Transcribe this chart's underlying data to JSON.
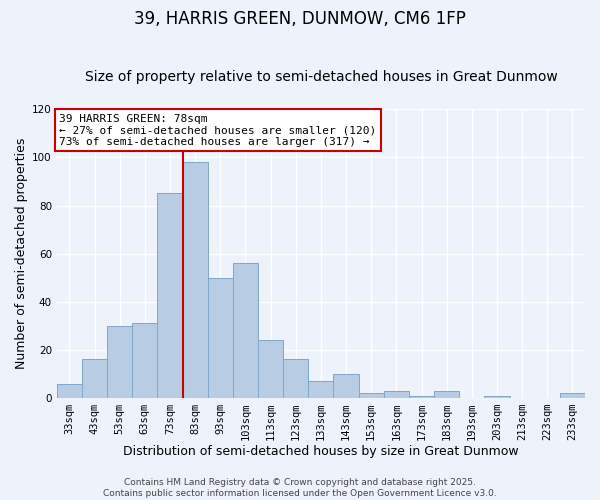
{
  "title": "39, HARRIS GREEN, DUNMOW, CM6 1FP",
  "subtitle": "Size of property relative to semi-detached houses in Great Dunmow",
  "xlabel": "Distribution of semi-detached houses by size in Great Dunmow",
  "ylabel": "Number of semi-detached properties",
  "categories": [
    "33sqm",
    "43sqm",
    "53sqm",
    "63sqm",
    "73sqm",
    "83sqm",
    "93sqm",
    "103sqm",
    "113sqm",
    "123sqm",
    "133sqm",
    "143sqm",
    "153sqm",
    "163sqm",
    "173sqm",
    "183sqm",
    "193sqm",
    "203sqm",
    "213sqm",
    "223sqm",
    "233sqm"
  ],
  "values": [
    6,
    16,
    30,
    31,
    85,
    98,
    50,
    56,
    24,
    16,
    7,
    10,
    2,
    3,
    1,
    3,
    0,
    1,
    0,
    0,
    2
  ],
  "bar_color": "#b8cce4",
  "bar_edge_color": "#7fa7c9",
  "vline_color": "#cc0000",
  "vline_pos": 4.5,
  "annotation_title": "39 HARRIS GREEN: 78sqm",
  "annotation_line1": "← 27% of semi-detached houses are smaller (120)",
  "annotation_line2": "73% of semi-detached houses are larger (317) →",
  "annotation_box_facecolor": "#ffffff",
  "annotation_box_edgecolor": "#cc0000",
  "ylim": [
    0,
    120
  ],
  "yticks": [
    0,
    20,
    40,
    60,
    80,
    100,
    120
  ],
  "background_color": "#eef2fb",
  "footer1": "Contains HM Land Registry data © Crown copyright and database right 2025.",
  "footer2": "Contains public sector information licensed under the Open Government Licence v3.0.",
  "grid_color": "#ffffff",
  "title_fontsize": 12,
  "subtitle_fontsize": 10,
  "xlabel_fontsize": 9,
  "ylabel_fontsize": 9,
  "tick_fontsize": 7.5,
  "annotation_fontsize": 8,
  "footer_fontsize": 6.5
}
